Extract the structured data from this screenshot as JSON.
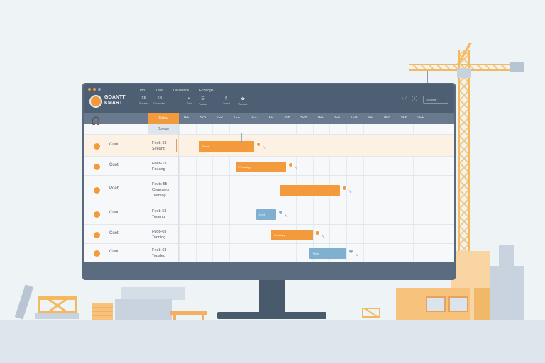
{
  "app": {
    "title": "GOANTT KMART",
    "menu": [
      "Tool",
      "Tone",
      "Daueshoe",
      "Ecorloge"
    ],
    "toolbar": [
      {
        "glyph": "18",
        "label": "Sueaoto"
      },
      {
        "glyph": "18",
        "label": "Coonnoted"
      },
      {
        "glyph": "♦",
        "label": "Tirai"
      },
      {
        "glyph": "☷",
        "label": "Paataol"
      },
      {
        "glyph": "ᛗ",
        "label": "Tound"
      },
      {
        "glyph": "✿",
        "label": "Toemao"
      }
    ],
    "header_icons": [
      "heart-icon",
      "info-icon",
      "settings-icon"
    ],
    "search_placeholder": "Rovsisar",
    "window_dot_colors": [
      "#f39a3c",
      "#f39a3c",
      "#7fb0cf"
    ]
  },
  "timeline": {
    "active_label": "Cotoa",
    "sub_label": "Doerge",
    "columns": [
      "1EF",
      "5Z3",
      "7E2",
      "1EE",
      "1EE",
      "1EE",
      "7BB",
      "5EB",
      "7EE",
      "3E6",
      "7EB",
      "56E",
      "0E8",
      "9E8",
      "9EF"
    ]
  },
  "rows": [
    {
      "name": "Cuot",
      "dates": [
        "Feeb-63",
        "Seeang"
      ],
      "highlighted": true,
      "bar": {
        "color": "orange",
        "label": "Tooes",
        "start_col": 1.2,
        "end_col": 4.5
      }
    },
    {
      "name": "Cuot",
      "dates": [
        "Foeb-13",
        "Fouang"
      ],
      "highlighted": false,
      "bar": {
        "color": "orange",
        "label": "Prooatug",
        "start_col": 3.4,
        "end_col": 6.4
      }
    },
    {
      "name": "Poeb",
      "dates": [
        "Fouts-55",
        "Ceamaeg",
        "Toamog"
      ],
      "highlighted": false,
      "bar": {
        "color": "orange",
        "label": "",
        "start_col": 6.0,
        "end_col": 9.6
      }
    },
    {
      "name": "Cuot",
      "dates": [
        "Feeb-53",
        "Toueng"
      ],
      "highlighted": false,
      "bar": {
        "color": "blue",
        "label": "Coeb",
        "start_col": 4.6,
        "end_col": 5.8
      }
    },
    {
      "name": "Cuot",
      "dates": [
        "Fuob-03",
        "Tooning"
      ],
      "highlighted": false,
      "bar": {
        "color": "orange",
        "label": "Srooateg",
        "start_col": 5.5,
        "end_col": 8.0
      }
    },
    {
      "name": "Cuot",
      "dates": [
        "Feeb-63",
        "Tousleg"
      ],
      "highlighted": false,
      "bar": {
        "color": "blue",
        "label": "Teoto",
        "start_col": 7.8,
        "end_col": 10.0
      }
    }
  ]
}
